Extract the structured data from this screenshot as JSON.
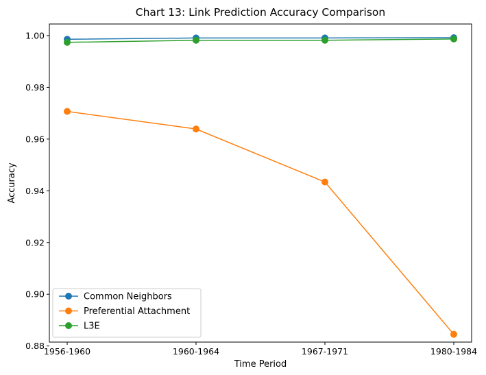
{
  "chart_data": {
    "type": "line",
    "title": "Chart 13: Link Prediction Accuracy Comparison",
    "xlabel": "Time Period",
    "ylabel": "Accuracy",
    "categories": [
      "1956-1960",
      "1960-1964",
      "1967-1971",
      "1980-1984"
    ],
    "ylim": [
      0.8815,
      1.0045
    ],
    "yticks": [
      0.88,
      0.9,
      0.92,
      0.94,
      0.96,
      0.98,
      1.0
    ],
    "ytick_labels": [
      "0.88",
      "0.90",
      "0.92",
      "0.94",
      "0.96",
      "0.98",
      "1.00"
    ],
    "grid": false,
    "legend_position": "bottom-left",
    "series": [
      {
        "name": "Common Neighbors",
        "color": "#1f77b4",
        "marker": "circle",
        "values": [
          0.9986,
          0.9991,
          0.9991,
          0.9992
        ]
      },
      {
        "name": "Preferential Attachment",
        "color": "#ff7f0e",
        "marker": "circle",
        "values": [
          0.9707,
          0.9639,
          0.9434,
          0.8845
        ]
      },
      {
        "name": "L3E",
        "color": "#2ca02c",
        "marker": "circle",
        "values": [
          0.9974,
          0.9982,
          0.9982,
          0.9987
        ]
      }
    ]
  }
}
